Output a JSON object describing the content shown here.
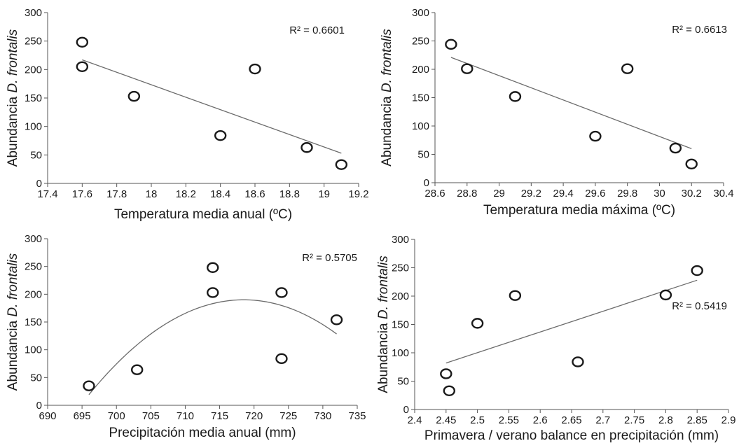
{
  "chart_data": [
    {
      "type": "scatter",
      "xlabel": "Temperatura media anual (ºC)",
      "ylabel_prefix": "Abundancia ",
      "ylabel_italic": "D. frontalis",
      "xlim": [
        17.4,
        19.2
      ],
      "ylim": [
        0,
        300
      ],
      "xticks": [
        "17.4",
        "17.6",
        "17.8",
        "18",
        "18.2",
        "18.4",
        "18.6",
        "18.8",
        "19",
        "19.2"
      ],
      "yticks": [
        "0",
        "50",
        "100",
        "150",
        "200",
        "250",
        "300"
      ],
      "x": [
        17.6,
        17.6,
        17.9,
        18.4,
        18.6,
        18.9,
        19.1
      ],
      "y": [
        248,
        205,
        153,
        84,
        201,
        63,
        33
      ],
      "trendline": {
        "kind": "linear",
        "x": [
          17.6,
          19.1
        ],
        "y": [
          217,
          53
        ]
      },
      "r2_label": "R² = 0.6601",
      "r2_pos": "top-right"
    },
    {
      "type": "scatter",
      "xlabel": "Temperatura media máxima (ºC)",
      "ylabel_prefix": "Abundancia ",
      "ylabel_italic": "D. frontalis",
      "xlim": [
        28.6,
        30.4
      ],
      "ylim": [
        0,
        300
      ],
      "xticks": [
        "28.6",
        "28.8",
        "29",
        "29.2",
        "29.4",
        "29.6",
        "29.8",
        "30",
        "30.2",
        "30.4"
      ],
      "yticks": [
        "0",
        "50",
        "100",
        "150",
        "200",
        "250",
        "300"
      ],
      "x": [
        28.7,
        28.8,
        29.1,
        29.6,
        29.8,
        30.1,
        30.2
      ],
      "y": [
        244,
        201,
        152,
        82,
        201,
        61,
        33
      ],
      "trendline": {
        "kind": "linear",
        "x": [
          28.7,
          30.2
        ],
        "y": [
          221,
          60
        ]
      },
      "r2_label": "R² = 0.6613",
      "r2_pos": "top-right"
    },
    {
      "type": "scatter",
      "xlabel": "Precipitación media anual (mm)",
      "ylabel_prefix": "Abundancia ",
      "ylabel_italic": "D. frontalis",
      "xlim": [
        690,
        735
      ],
      "ylim": [
        0,
        300
      ],
      "xticks": [
        "690",
        "695",
        "700",
        "705",
        "710",
        "715",
        "720",
        "725",
        "730",
        "735"
      ],
      "yticks": [
        "0",
        "50",
        "100",
        "150",
        "200",
        "250",
        "300"
      ],
      "x": [
        696,
        703,
        714,
        714,
        724,
        724,
        732
      ],
      "y": [
        35,
        64,
        248,
        203,
        203,
        84,
        154
      ],
      "trendline": {
        "kind": "quadratic",
        "xmin": 696,
        "xmax": 732,
        "vertex_x": 718.5,
        "vertex_y": 190,
        "a": -0.3375
      },
      "r2_label": "R² = 0.5705",
      "r2_pos": "top-right"
    },
    {
      "type": "scatter",
      "xlabel": "Primavera / verano balance en precipitación (mm)",
      "ylabel_prefix": "Abundancia ",
      "ylabel_italic": "D. frontalis",
      "xlim": [
        2.4,
        2.9
      ],
      "ylim": [
        0,
        300
      ],
      "xticks": [
        "2.4",
        "2.45",
        "2.5",
        "2.55",
        "2.6",
        "2.65",
        "2.7",
        "2.75",
        "2.8",
        "2.85",
        "2.9"
      ],
      "yticks": [
        "0",
        "50",
        "100",
        "150",
        "200",
        "250",
        "300"
      ],
      "x": [
        2.45,
        2.455,
        2.5,
        2.56,
        2.66,
        2.8,
        2.85
      ],
      "y": [
        63,
        33,
        152,
        201,
        84,
        202,
        245
      ],
      "trendline": {
        "kind": "linear",
        "x": [
          2.45,
          2.85
        ],
        "y": [
          82,
          228
        ]
      },
      "r2_label": "R² = 0.5419",
      "r2_pos": "middle-right"
    }
  ]
}
